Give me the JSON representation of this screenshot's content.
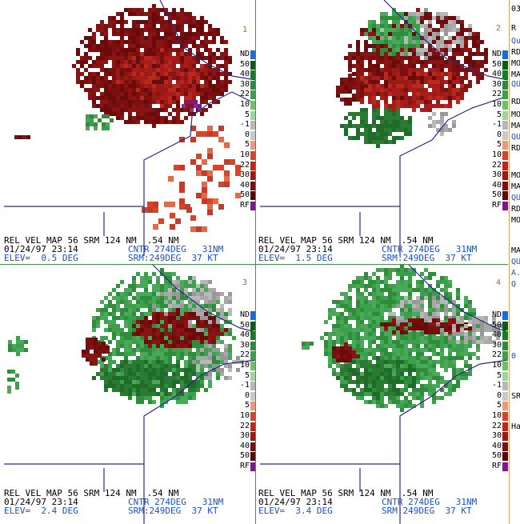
{
  "colors": {
    "nd": "#1a6bd6",
    "rf": "#7a1a8a",
    "inbound_strong": "#1f6b2a",
    "inbound_mid": "#2f8c3a",
    "outbound_strong": "#7a0f0f",
    "outbound_mid": "#a81c1c",
    "outbound_light": "#d2462e",
    "near_zero": "#a8a8a8",
    "boundary": "#2a2a8a",
    "panel_border": "#3a9a4a",
    "blue_text": "#1a4fd6",
    "panel_number": "#b5651d"
  },
  "legend": {
    "labels": [
      "ND",
      "50",
      "40",
      "30",
      "22",
      "10",
      "5",
      "-1",
      "0",
      "5",
      "10",
      "22",
      "30",
      "40",
      "50",
      "RF"
    ],
    "swatch_colors": [
      "#1a6bd6",
      "#0f5a1a",
      "#1a7a2a",
      "#2a8c3a",
      "#3aa04a",
      "#6fbf6f",
      "#9ed49e",
      "#b8b8b8",
      "#c8c8c8",
      "#e89a80",
      "#d2462e",
      "#b82a1e",
      "#9a1a14",
      "#7a0f0f",
      "#5a0808",
      "#7a1a8a"
    ]
  },
  "panels": [
    {
      "number": "1",
      "line1": "REL VEL MAP 56 SRM 124 NM  .54 NM",
      "line2": "01/24/97 23:14",
      "line2b": "CNTR 274DEG   31NM",
      "line3": "ELEV=  0.5 DEG",
      "line3b": "SRM:249DEG  37 KT"
    },
    {
      "number": "2",
      "line1": "REL VEL MAP 56 SRM 124 NM  .54 NM",
      "line2": "01/24/97 23:14",
      "line2b": "CNTR 274DEG   31NM",
      "line3": "ELEV=  1.5 DEG",
      "line3b": "SRM:249DEG  37 KT"
    },
    {
      "number": "3",
      "line1": "REL VEL MAP 56 SRM 124 NM  .54 NM",
      "line2": "01/24/97 23:14",
      "line2b": "CNTR 274DEG   31NM",
      "line3": "ELEV=  2.4 DEG",
      "line3b": "SRM:249DEG  37 KT"
    },
    {
      "number": "4",
      "line1": "REL VEL MAP 56 SRM 124 NM  .54 NM",
      "line2": "01/24/97 23:14",
      "line2b": "CNTR 274DEG   31NM",
      "line3": "ELEV=  3.4 DEG",
      "line3b": "SRM:249DEG  37 KT"
    }
  ],
  "side_fragments": [
    "03",
    "R",
    "Qu",
    "RD",
    "MO",
    "MA",
    "QU",
    "RD",
    "MO",
    "MA",
    "QU",
    "RD",
    "MO",
    "MA",
    "QU",
    "RD",
    "MO",
    "MA",
    "QU",
    "A.",
    "Q",
    "0",
    "SR",
    "Ha"
  ]
}
